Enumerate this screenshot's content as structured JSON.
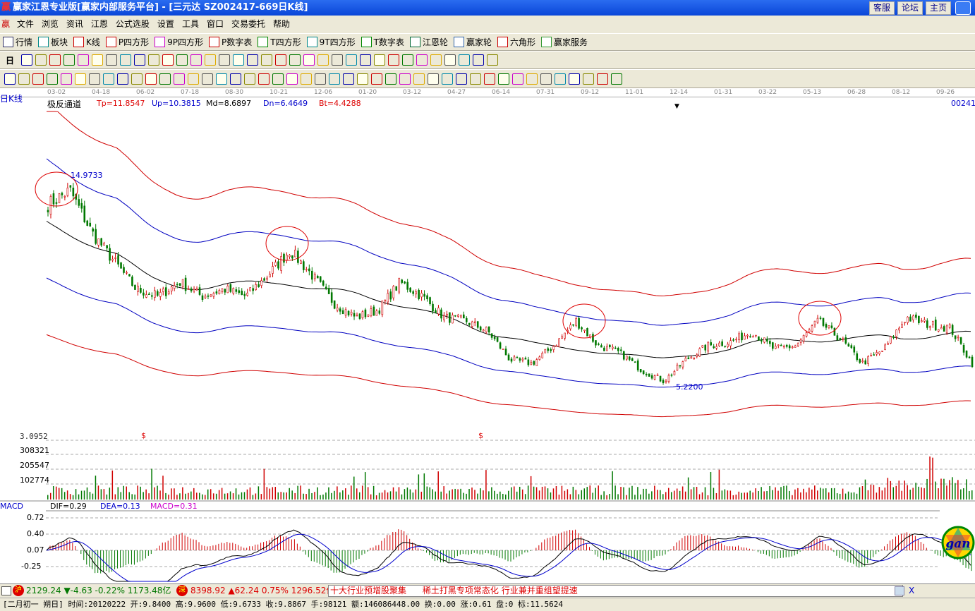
{
  "window": {
    "title": "赢家江恩专业版[赢家内部服务平台] - [三元达   SZ002417-669日K线]",
    "app_logo": "赢",
    "buttons": [
      "客服",
      "论坛",
      "主页"
    ]
  },
  "menu": {
    "logo": "赢",
    "items": [
      "文件",
      "浏览",
      "资讯",
      "江恩",
      "公式选股",
      "设置",
      "工具",
      "窗口",
      "交易委托",
      "帮助"
    ]
  },
  "toolbar1": [
    {
      "icon": "grid-icon",
      "label": "行情"
    },
    {
      "icon": "blocks-icon",
      "label": "板块"
    },
    {
      "icon": "candlestick-icon",
      "label": "K线"
    },
    {
      "icon": "ps-icon",
      "label": "P四方形"
    },
    {
      "icon": "p9-icon",
      "label": "9P四方形"
    },
    {
      "icon": "pn-icon",
      "label": "P数字表"
    },
    {
      "icon": "ts-icon",
      "label": "T四方形"
    },
    {
      "icon": "t9-icon",
      "label": "9T四方形"
    },
    {
      "icon": "tn-icon",
      "label": "T数字表"
    },
    {
      "icon": "gann-wheel-icon",
      "label": "江恩轮"
    },
    {
      "icon": "big-icon",
      "label": "赢家轮"
    },
    {
      "icon": "hexagon-icon",
      "label": "六角形"
    },
    {
      "icon": "dollar-icon",
      "label": "赢家服务"
    }
  ],
  "toolbar2": {
    "period": "日",
    "icon_count": 34
  },
  "toolbar3": {
    "icon_count": 44
  },
  "chart": {
    "period_label": "日K线",
    "indicator": {
      "name": "极反通道",
      "tp": "Tp=11.8547",
      "up": "Up=10.3815",
      "md": "Md=8.6897",
      "dn": "Dn=6.4649",
      "bt": "Bt=4.4288"
    },
    "code_label": "00241",
    "high_marker": "14.9733",
    "low_marker": "5.2200",
    "dates": [
      "03-02",
      "04-18",
      "06-02",
      "07-18",
      "08-30",
      "10-21",
      "12-06",
      "01-20",
      "03-12",
      "04-27",
      "06-14",
      "07-31",
      "09-12",
      "11-01",
      "12-14",
      "01-31",
      "03-22",
      "05-13",
      "06-28",
      "08-12",
      "09-26"
    ],
    "price_path": [
      13.4,
      14.03,
      12.14,
      10.88,
      9.63,
      9.31,
      9.94,
      9.31,
      9.63,
      9.31,
      10.25,
      11.36,
      10.25,
      9.0,
      8.37,
      8.68,
      9.94,
      9.31,
      8.37,
      8.21,
      7.74,
      6.48,
      6.32,
      7.11,
      8.21,
      7.11,
      6.79,
      6.01,
      5.53,
      6.48,
      7.11,
      7.27,
      7.74,
      6.95,
      7.11,
      8.21,
      7.42,
      6.32,
      6.95,
      8.37,
      8.05,
      7.89,
      6.32
    ],
    "colors": {
      "up": "#d00000",
      "down": "#007800",
      "upper_outer": "#d00000",
      "upper_inner": "#0000c0",
      "mid": "#000000"
    },
    "dividend_axis_value": "3.0952",
    "dividend_mark": "$",
    "volume_ticks": [
      "308321",
      "205547",
      "102774"
    ],
    "macd": {
      "label": "MACD",
      "dif": "DIF=0.29",
      "dea": "DEA=0.13",
      "macd": "MACD=0.31",
      "ticks": [
        "0.72",
        "0.40",
        "0.07",
        "-0.25"
      ]
    }
  },
  "status": {
    "sh_badge": "沪",
    "sh": "2129.24 ▼-4.63 -0.22% 1173.48亿",
    "sz_badge": "深",
    "sz": "8398.92 ▲62.24 0.75% 1296.52亿",
    "news": "十大行业预增股聚集      稀土打黑专项常态化 行业兼并重组望提速"
  },
  "info": "[二月初一  朔日] 时间:20120222 开:9.8400 高:9.9600 低:9.6733 收:9.8867 手:98121 额:146086448.00 换:0.00 涨:0.61 盘:0 标:11.5624",
  "logo_text": "gan"
}
